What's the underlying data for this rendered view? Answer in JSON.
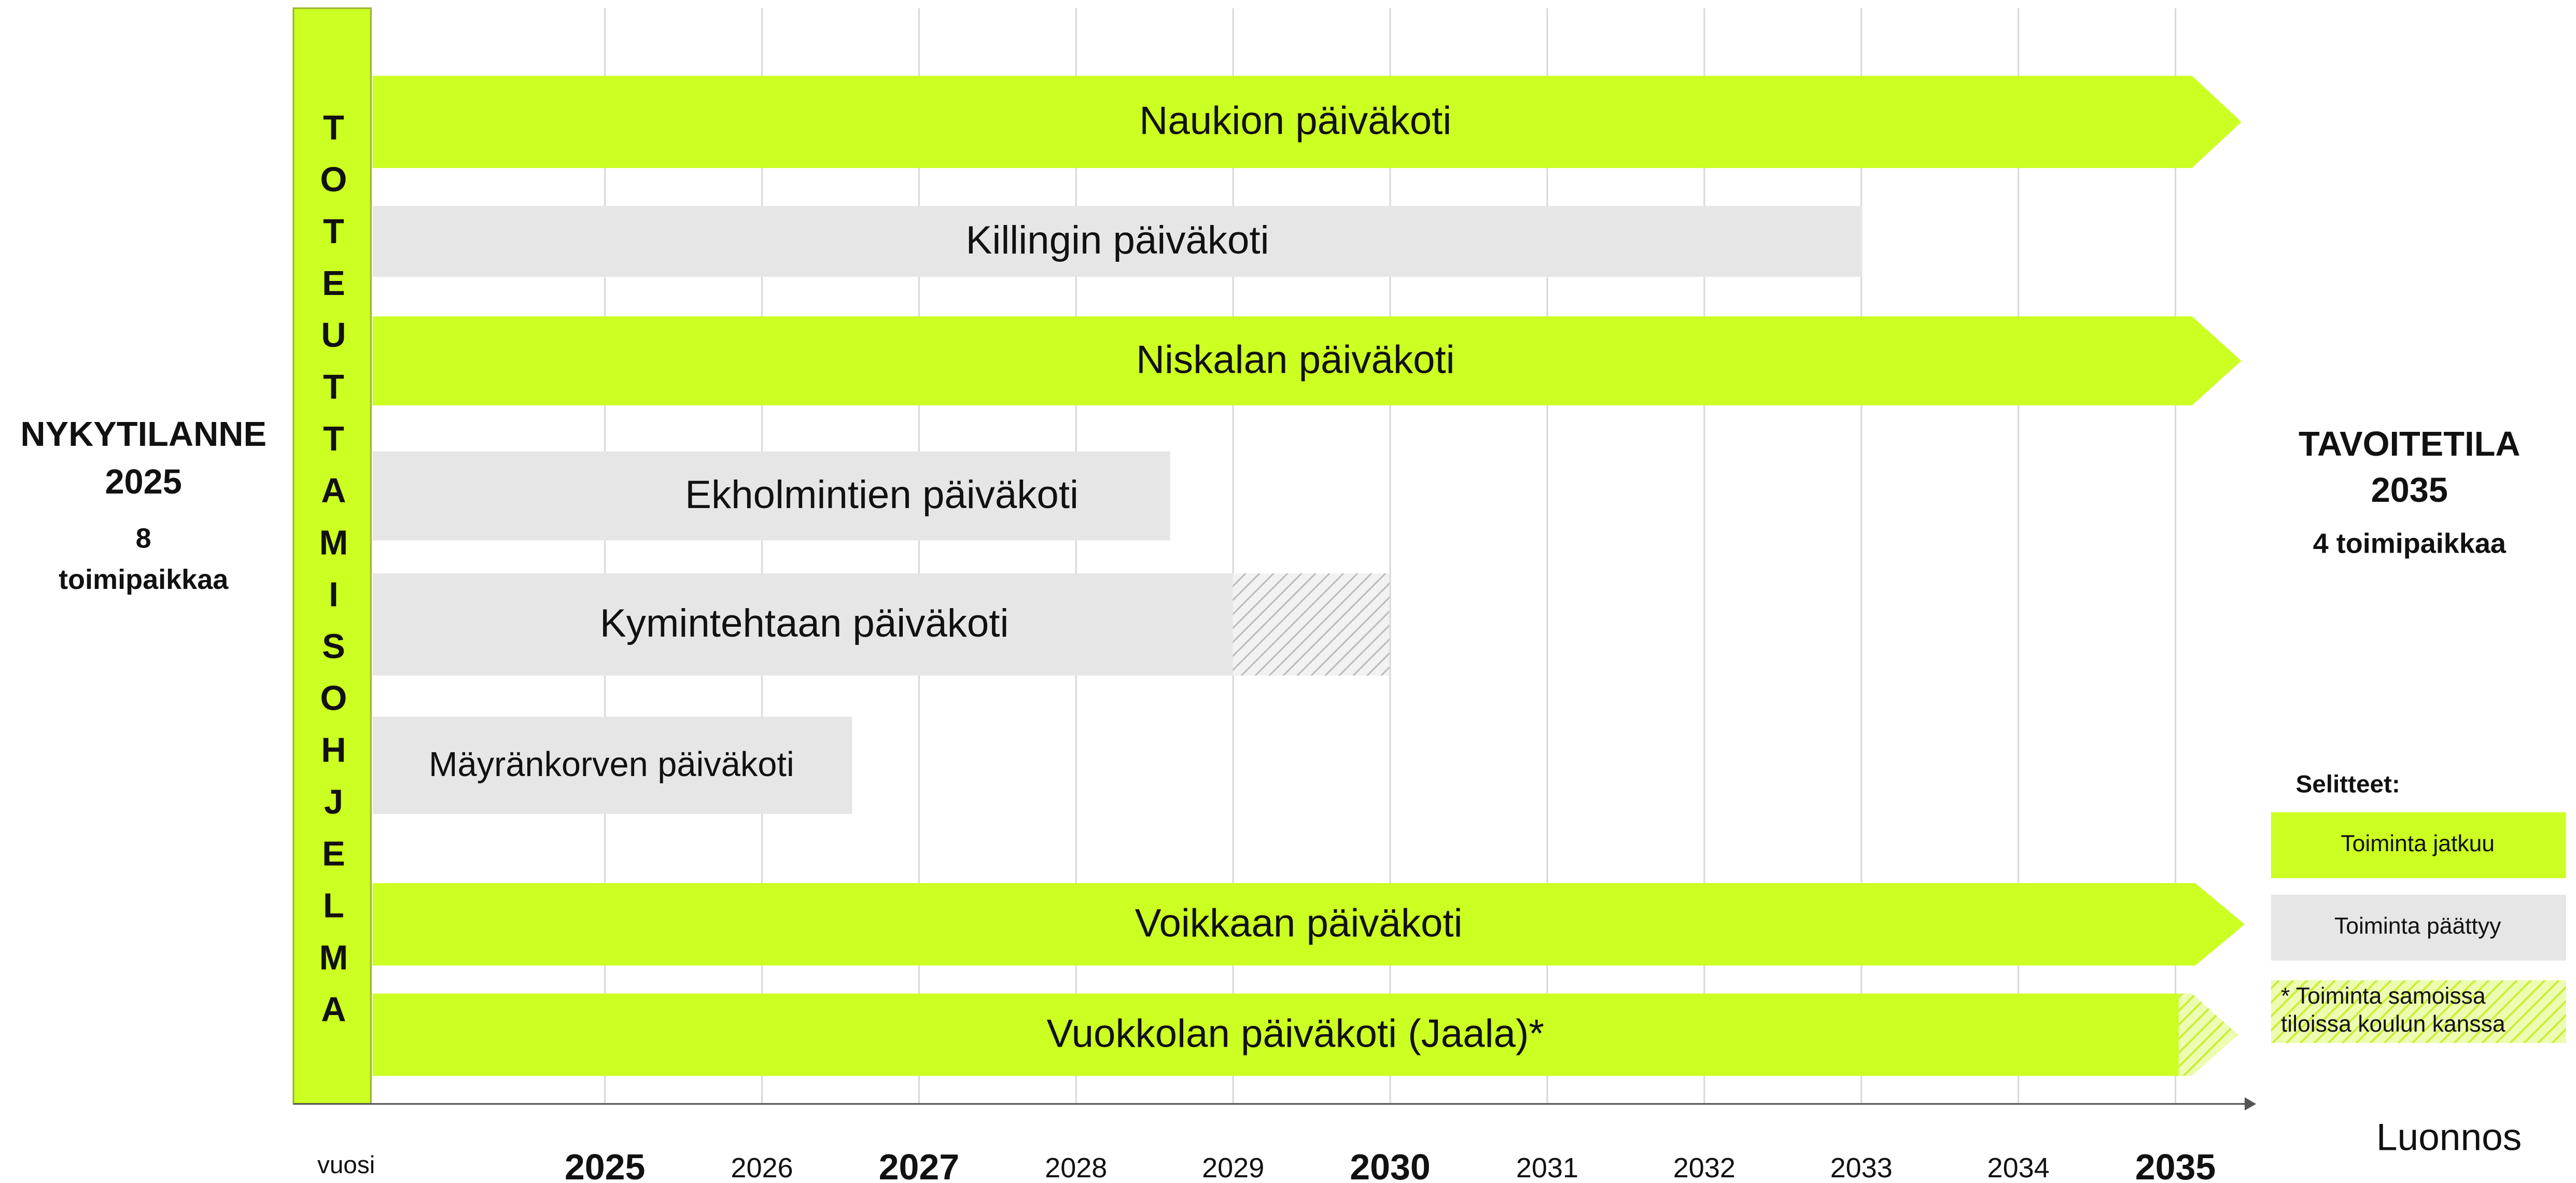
{
  "left_status": {
    "title": "NYKYTILANNE",
    "year": "2025",
    "lines": [
      "8",
      "toimipaikkaa"
    ]
  },
  "right_status": {
    "title": "TAVOITETILA",
    "year": "2035",
    "note": "4 toimipaikkaa"
  },
  "program": "TOTEUTTAMISOHJELMA",
  "axis_label": "vuosi",
  "years": [
    {
      "label": "2025",
      "major": true
    },
    {
      "label": "2026",
      "major": false
    },
    {
      "label": "2027",
      "major": true
    },
    {
      "label": "2028",
      "major": false
    },
    {
      "label": "2029",
      "major": false
    },
    {
      "label": "2030",
      "major": true
    },
    {
      "label": "2031",
      "major": false
    },
    {
      "label": "2032",
      "major": false
    },
    {
      "label": "2033",
      "major": false
    },
    {
      "label": "2034",
      "major": false
    },
    {
      "label": "2035",
      "major": true
    }
  ],
  "rows": [
    {
      "label": "Naukion päiväkoti",
      "status": "continues"
    },
    {
      "label": "Killingin päiväkoti",
      "status": "ends"
    },
    {
      "label": "Niskalan päiväkoti",
      "status": "continues"
    },
    {
      "label": "Ekholmintien päiväkoti",
      "status": "ends"
    },
    {
      "label": "Kymintehtaan päiväkoti",
      "status": "ends"
    },
    {
      "label": "Mäyränkorven päiväkoti",
      "status": "ends"
    },
    {
      "label": "Voikkaan päiväkoti",
      "status": "continues"
    },
    {
      "label": "Vuokkolan päiväkoti (Jaala)*",
      "status": "continues"
    }
  ],
  "legend": {
    "title": "Selitteet:",
    "items": [
      {
        "lines": [
          "Toiminta jatkuu"
        ],
        "style": "continues"
      },
      {
        "lines": [
          "Toiminta päättyy"
        ],
        "style": "ends"
      },
      {
        "lines": [
          "* Toiminta samoissa",
          "tiloissa koulun kanssa"
        ],
        "style": "shared"
      }
    ]
  },
  "watermark": "Luonnos"
}
